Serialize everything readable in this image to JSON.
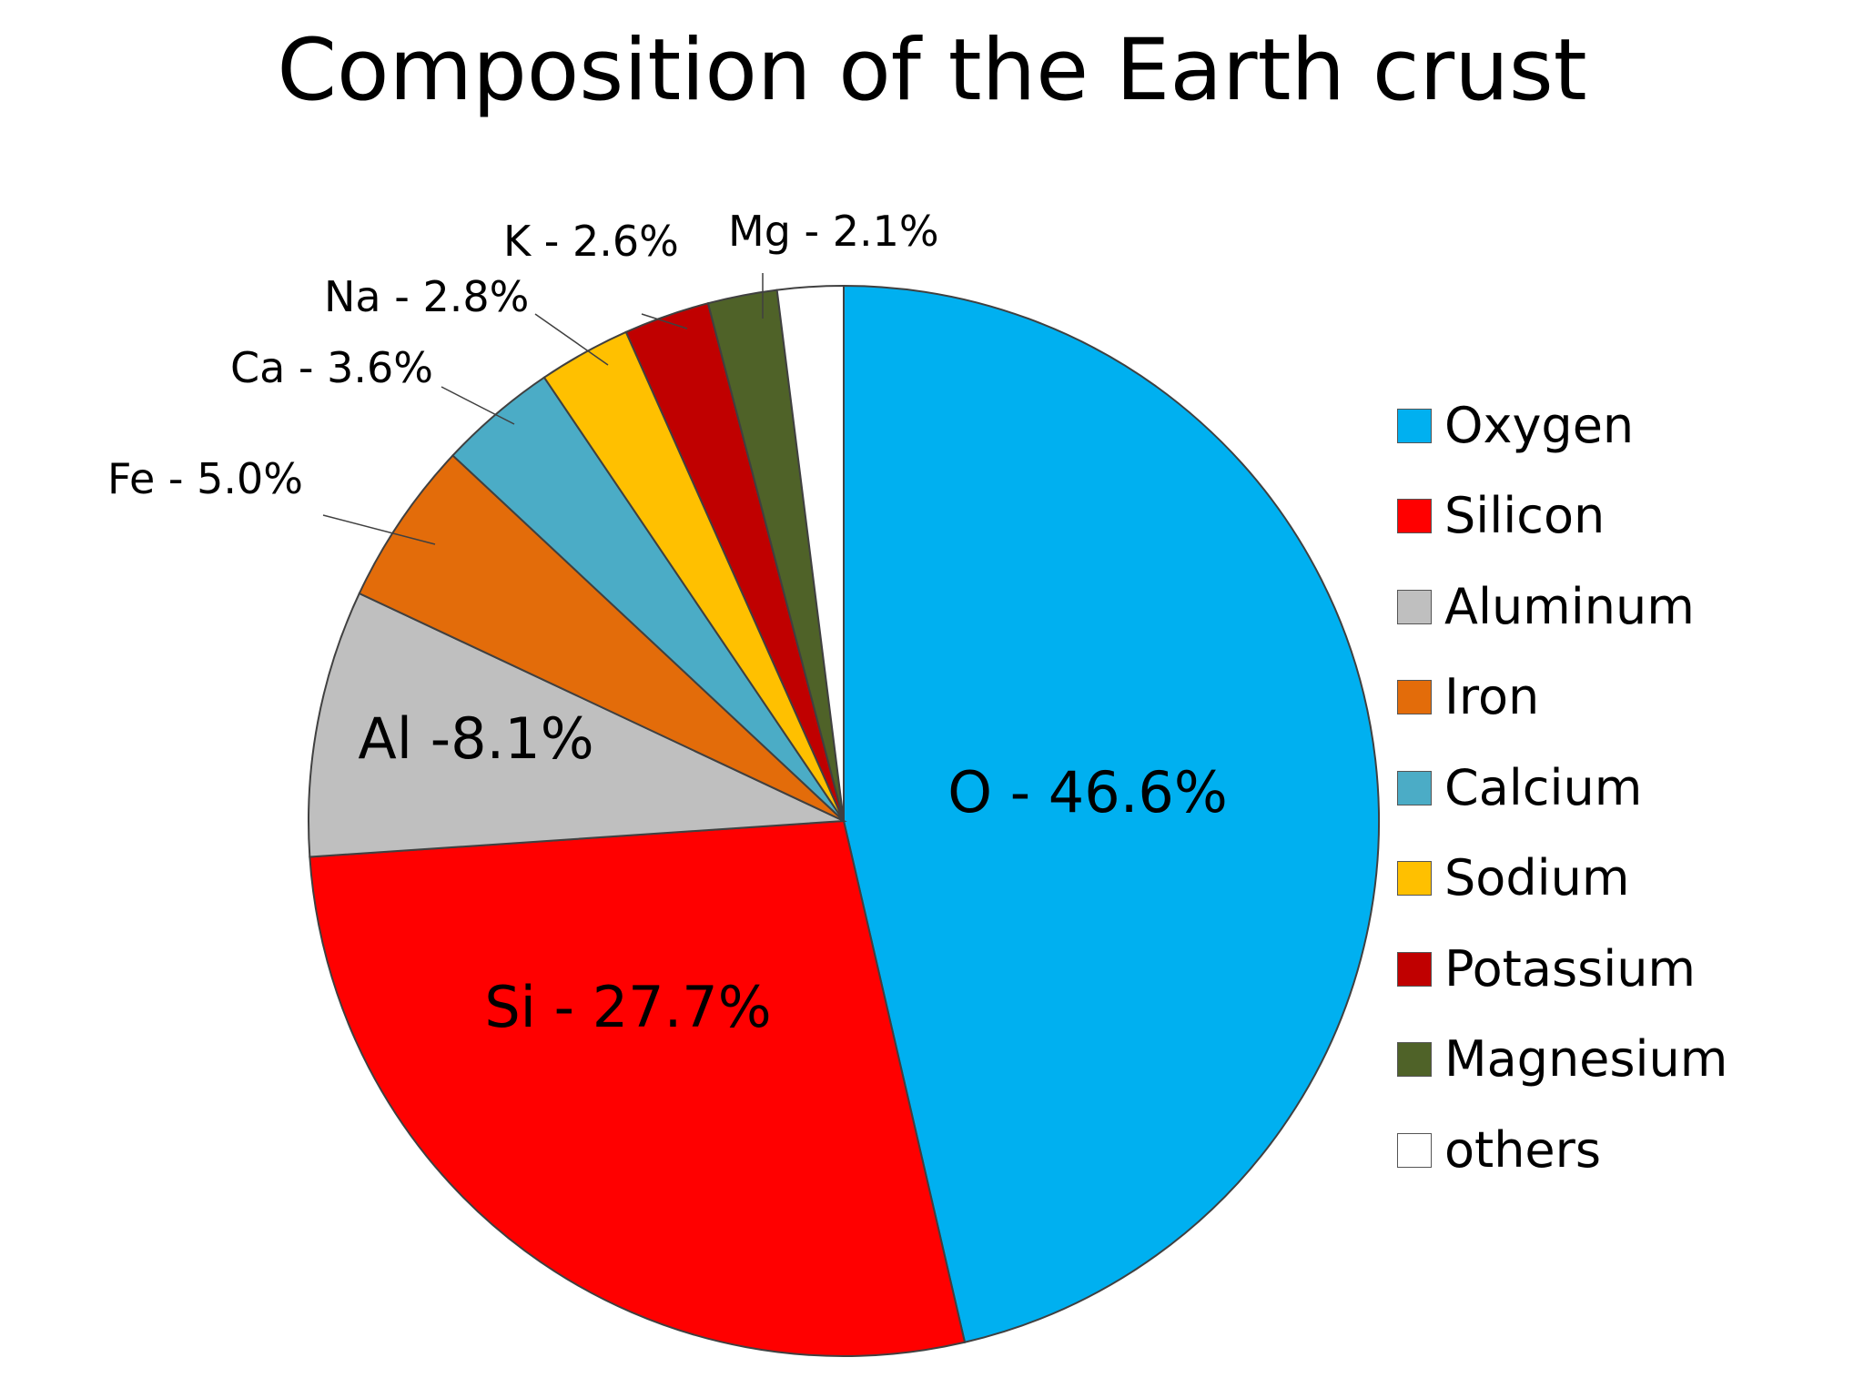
{
  "chart_data": {
    "type": "pie",
    "title": "Composition of the Earth crust",
    "slices": [
      {
        "name": "Oxygen",
        "label": "O - 46.6%",
        "value": 46.6,
        "color": "#00B0F0"
      },
      {
        "name": "Silicon",
        "label": "Si - 27.7%",
        "value": 27.7,
        "color": "#FF0000"
      },
      {
        "name": "Aluminum",
        "label": "Al -8.1%",
        "value": 8.1,
        "color": "#BFBFBF"
      },
      {
        "name": "Iron",
        "label": "Fe - 5.0%",
        "value": 5.0,
        "color": "#E36C0A"
      },
      {
        "name": "Calcium",
        "label": "Ca - 3.6%",
        "value": 3.6,
        "color": "#4BACC6"
      },
      {
        "name": "Sodium",
        "label": "Na - 2.8%",
        "value": 2.8,
        "color": "#FFC000"
      },
      {
        "name": "Potassium",
        "label": "K - 2.6%",
        "value": 2.6,
        "color": "#C00000"
      },
      {
        "name": "Magnesium",
        "label": "Mg - 2.1%",
        "value": 2.1,
        "color": "#4F6228"
      },
      {
        "name": "others",
        "label": "",
        "value": 2.0,
        "color": "#FFFFFF"
      }
    ],
    "legend_position": "right"
  }
}
